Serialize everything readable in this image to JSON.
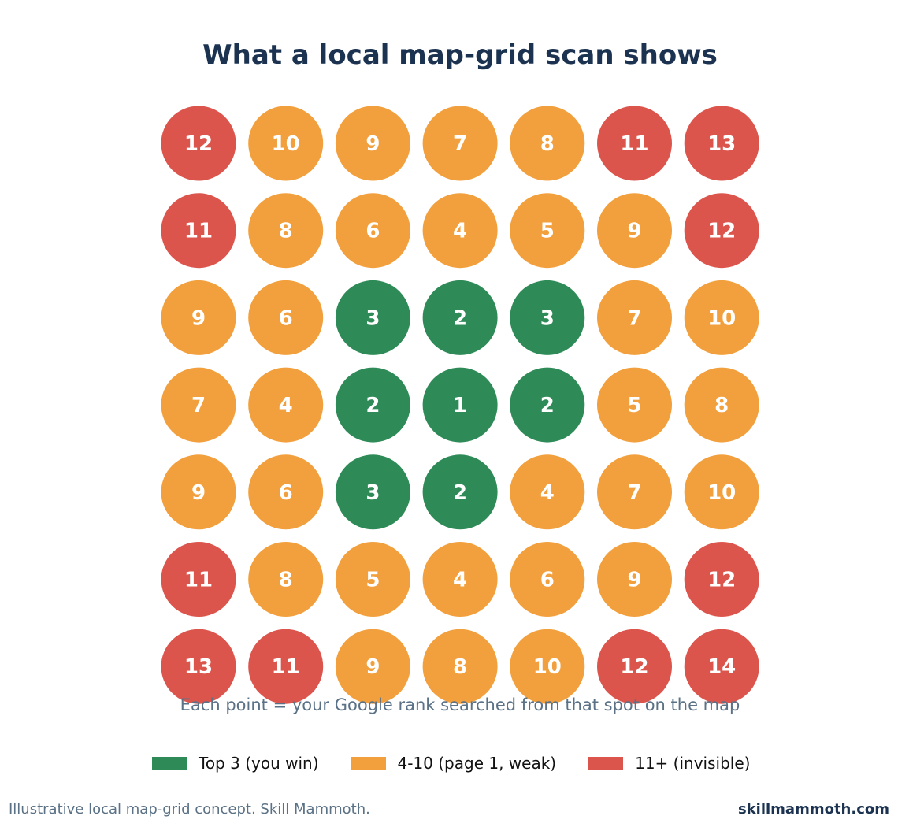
{
  "title": "What a local map-grid scan shows",
  "subtitle": "Each point = your Google rank searched from that spot on the map",
  "legend": [
    {
      "label": "Top 3 (you win)",
      "color": "#2e8b57"
    },
    {
      "label": "4-10 (page 1, weak)",
      "color": "#f2a03d"
    },
    {
      "label": "11+ (invisible)",
      "color": "#dc554d"
    }
  ],
  "footer": {
    "source": "Illustrative local map-grid concept. Skill Mammoth.",
    "brand": "skillmammoth.com"
  },
  "chart_data": {
    "type": "heatmap",
    "rows": 7,
    "cols": 7,
    "values": [
      [
        12,
        10,
        9,
        7,
        8,
        11,
        13
      ],
      [
        11,
        8,
        6,
        4,
        5,
        9,
        12
      ],
      [
        9,
        6,
        3,
        2,
        3,
        7,
        10
      ],
      [
        7,
        4,
        2,
        1,
        2,
        5,
        8
      ],
      [
        9,
        6,
        3,
        2,
        4,
        7,
        10
      ],
      [
        11,
        8,
        5,
        4,
        6,
        9,
        12
      ],
      [
        13,
        11,
        9,
        8,
        10,
        12,
        14
      ]
    ],
    "color_bins": [
      {
        "min": 1,
        "max": 3,
        "color": "#2e8b57"
      },
      {
        "min": 4,
        "max": 10,
        "color": "#f2a03d"
      },
      {
        "min": 11,
        "max": null,
        "color": "#dc554d"
      }
    ],
    "label_color": "#ffffff"
  }
}
